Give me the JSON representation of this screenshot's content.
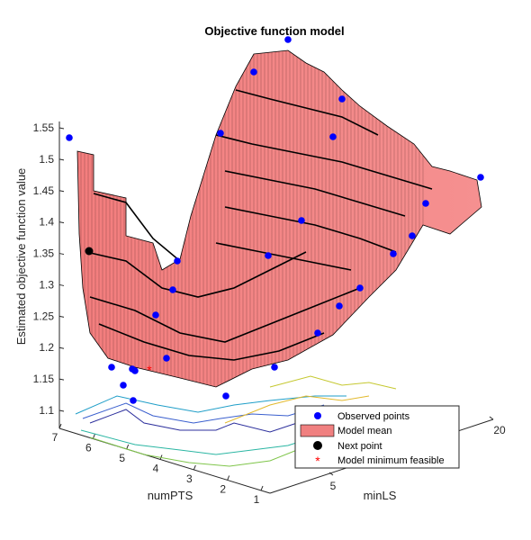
{
  "chart_data": {
    "type": "surface",
    "title": "Objective function model",
    "zlabel": "Estimated objective function value",
    "xlabel": "numPTS",
    "ylabel": "minLS",
    "z_ticks": [
      "1.1",
      "1.15",
      "1.2",
      "1.25",
      "1.3",
      "1.35",
      "1.4",
      "1.45",
      "1.5",
      "1.55"
    ],
    "numPTS_ticks": [
      "7",
      "6",
      "5",
      "4",
      "3",
      "2",
      "1"
    ],
    "minLS_ticks": [
      "5",
      "20"
    ],
    "zlim": [
      1.1,
      1.55
    ],
    "legend": {
      "placement": "bottom-right",
      "entries": [
        {
          "label": "Observed points",
          "color": "#0000ff"
        },
        {
          "label": "Model mean",
          "color": "#f08080"
        },
        {
          "label": "Next point",
          "color": "#000000"
        },
        {
          "label": "Model minimum feasible",
          "color": "#ff0000"
        }
      ]
    },
    "observed_points": [
      {
        "numPTS": 7,
        "minLS": 1,
        "value": 1.535
      },
      {
        "numPTS": 6.5,
        "minLS": 2,
        "value": 1.172
      },
      {
        "numPTS": 6,
        "minLS": 3,
        "value": 1.145
      },
      {
        "numPTS": 5.8,
        "minLS": 4,
        "value": 1.178
      },
      {
        "numPTS": 5.5,
        "minLS": 4,
        "value": 1.168
      },
      {
        "numPTS": 5,
        "minLS": 5,
        "value": 1.115
      },
      {
        "numPTS": 5,
        "minLS": 6,
        "value": 1.255
      },
      {
        "numPTS": 4.5,
        "minLS": 6,
        "value": 1.185
      },
      {
        "numPTS": 4.5,
        "minLS": 7,
        "value": 1.29
      },
      {
        "numPTS": 4.3,
        "minLS": 7,
        "value": 1.34
      },
      {
        "numPTS": 3.5,
        "minLS": 8,
        "value": 1.12
      },
      {
        "numPTS": 4,
        "minLS": 8,
        "value": 1.54
      },
      {
        "numPTS": 4,
        "minLS": 9,
        "value": 1.57
      },
      {
        "numPTS": 3.7,
        "minLS": 10,
        "value": 1.58
      },
      {
        "numPTS": 3.5,
        "minLS": 11,
        "value": 1.345
      },
      {
        "numPTS": 3,
        "minLS": 12,
        "value": 1.17
      },
      {
        "numPTS": 3,
        "minLS": 13,
        "value": 1.39
      },
      {
        "numPTS": 3,
        "minLS": 14,
        "value": 1.54
      },
      {
        "numPTS": 2.5,
        "minLS": 15,
        "value": 1.52
      },
      {
        "numPTS": 2.5,
        "minLS": 16,
        "value": 1.28
      },
      {
        "numPTS": 2.3,
        "minLS": 17,
        "value": 1.3
      },
      {
        "numPTS": 2.2,
        "minLS": 18,
        "value": 1.36
      },
      {
        "numPTS": 2,
        "minLS": 19,
        "value": 1.4
      },
      {
        "numPTS": 1.5,
        "minLS": 19,
        "value": 1.45
      },
      {
        "numPTS": 1,
        "minLS": 20,
        "value": 1.47
      }
    ],
    "next_point": {
      "numPTS": 6.5,
      "minLS": 1,
      "value": 1.355
    },
    "model_minimum_feasible": {
      "numPTS": 5.5,
      "minLS": 5,
      "value": 1.16
    }
  }
}
